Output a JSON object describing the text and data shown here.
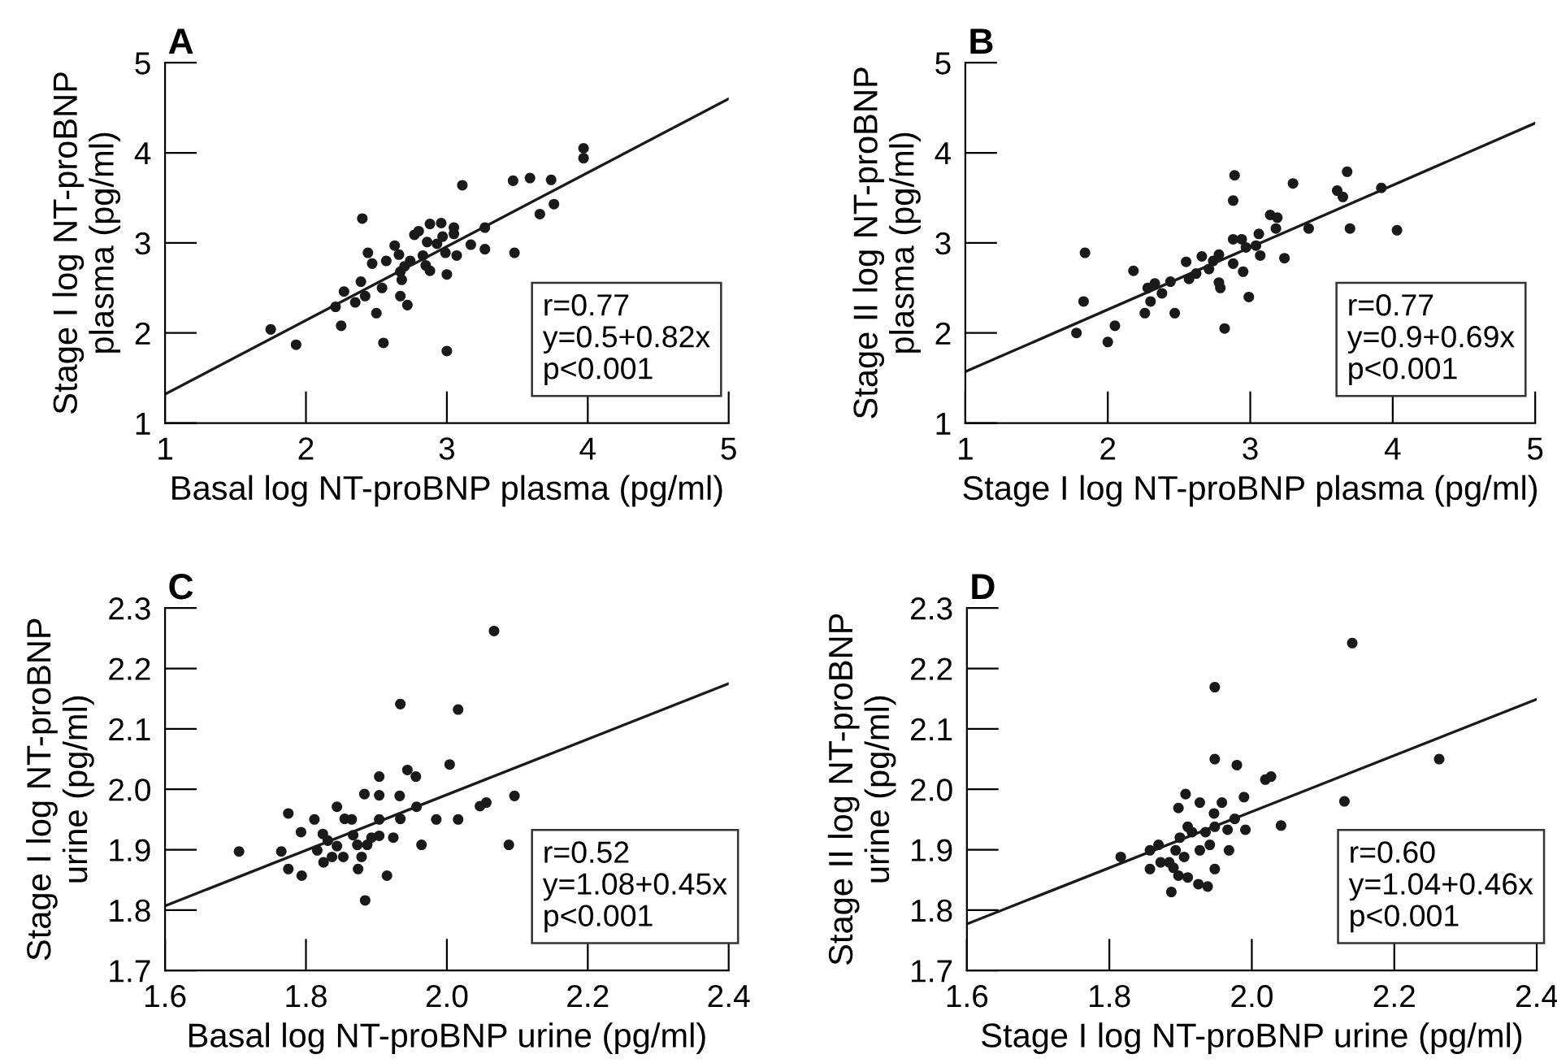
{
  "chart_data": [
    {
      "type": "scatter",
      "title": "A",
      "xlabel": "Basal log NT-proBNP plasma (pg/ml)",
      "ylabel": "Stage I log NT-proBNP\nplasma (pg/ml)",
      "xlim": [
        1,
        5
      ],
      "ylim": [
        1,
        5
      ],
      "xticks": [
        1,
        2,
        3,
        4,
        5
      ],
      "yticks": [
        1,
        2,
        3,
        4,
        5
      ],
      "grid": false,
      "annotations": [
        "r=0.77",
        "y=0.5+0.82x",
        "p<0.001"
      ],
      "series": [
        {
          "type": "scatter",
          "marker": "circle",
          "color": "#1a1a1a",
          "x": [
            1.75,
            1.93,
            2.25,
            2.21,
            2.27,
            2.39,
            2.35,
            2.42,
            2.5,
            2.54,
            2.55,
            2.4,
            2.44,
            2.47,
            2.55,
            2.57,
            2.63,
            2.66,
            2.67,
            2.68,
            2.7,
            2.67,
            2.72,
            2.77,
            2.83,
            2.85,
            2.88,
            2.86,
            2.88,
            2.96,
            2.97,
            2.99,
            3.0,
            3.05,
            3.05,
            3.0,
            3.07,
            3.11,
            3.17,
            3.27,
            3.27,
            3.47,
            3.48,
            3.59,
            3.66,
            3.74,
            3.76,
            3.97,
            3.97,
            2.93,
            2.8,
            2.74
          ],
          "values": [
            2.04,
            1.87,
            2.08,
            2.29,
            2.46,
            2.57,
            2.34,
            2.41,
            2.22,
            2.5,
            1.89,
            3.27,
            2.89,
            2.77,
            null,
            2.8,
            2.97,
            2.87,
            2.68,
            2.59,
            2.74,
            2.41,
            2.31,
            3.09,
            2.86,
            2.75,
            2.69,
            3.01,
            3.21,
            3.22,
            3.07,
            2.89,
            2.65,
            3.1,
            3.17,
            1.8,
            2.86,
            3.64,
            2.98,
            3.17,
            2.93,
            3.69,
            2.89,
            3.72,
            3.32,
            3.7,
            3.43,
            4.05,
            3.94,
            2.99,
            3.13,
            2.8
          ]
        },
        {
          "type": "line",
          "line_style": "solid",
          "color": "#1a1a1a",
          "x": [
            1,
            5
          ],
          "values": [
            1.32,
            4.6
          ]
        }
      ]
    },
    {
      "type": "scatter",
      "title": "B",
      "xlabel": "Stage I log NT-proBNP plasma (pg/ml)",
      "ylabel": "Stage II log NT-proBNP\nplasma (pg/ml)",
      "xlim": [
        1,
        5
      ],
      "ylim": [
        1,
        5
      ],
      "xticks": [
        1,
        2,
        3,
        4,
        5
      ],
      "yticks": [
        1,
        2,
        3,
        4,
        5
      ],
      "grid": false,
      "annotations": [
        "r=0.77",
        "y=0.9+0.69x",
        "p<0.001"
      ],
      "series": [
        {
          "type": "scatter",
          "marker": "circle",
          "color": "#1a1a1a",
          "x": [
            1.78,
            1.83,
            1.84,
            2.0,
            2.05,
            2.18,
            2.26,
            2.3,
            2.28,
            2.33,
            2.38,
            2.44,
            2.47,
            2.55,
            2.57,
            2.62,
            2.66,
            2.71,
            2.74,
            2.78,
            2.79,
            2.78,
            2.82,
            2.88,
            2.88,
            2.89,
            2.88,
            2.94,
            2.97,
            2.95,
            2.99,
            3.04,
            3.07,
            3.06,
            3.14,
            3.18,
            3.19,
            3.24,
            3.3,
            3.41,
            3.61,
            3.65,
            3.68,
            3.7,
            3.92,
            4.03
          ],
          "values": [
            2.0,
            2.35,
            2.89,
            1.9,
            2.08,
            2.69,
            2.22,
            2.35,
            2.5,
            2.55,
            2.44,
            2.57,
            2.22,
            2.79,
            2.6,
            2.66,
            2.85,
            2.71,
            2.8,
            2.56,
            2.5,
            2.87,
            2.05,
            2.77,
            3.47,
            3.75,
            3.04,
            3.04,
            2.95,
            2.68,
            2.4,
            2.97,
            2.86,
            3.1,
            3.31,
            3.16,
            3.28,
            2.83,
            3.66,
            3.16,
            3.58,
            3.51,
            3.79,
            3.16,
            3.61,
            3.14
          ]
        },
        {
          "type": "line",
          "line_style": "solid",
          "color": "#1a1a1a",
          "x": [
            1,
            5
          ],
          "values": [
            1.57,
            4.33
          ]
        }
      ]
    },
    {
      "type": "scatter",
      "title": "C",
      "xlabel": "Basal log NT-proBNP urine (pg/ml)",
      "ylabel": "Stage I log NT-proBNP\nurine (pg/ml)",
      "xlim": [
        1.6,
        2.4
      ],
      "ylim": [
        1.7,
        2.3
      ],
      "xticks": [
        {
          "value": 1.6,
          "label": "1.6"
        },
        {
          "value": 1.8,
          "label": "1.8"
        },
        {
          "value": 2.0,
          "label": "2.0"
        },
        {
          "value": 2.2,
          "label": "2.2"
        },
        {
          "value": 2.4,
          "label": "2.4"
        }
      ],
      "yticks": [
        1.7,
        1.8,
        1.9,
        {
          "value": 2.0,
          "label": "2.0"
        },
        2.1,
        2.2,
        2.3
      ],
      "grid": false,
      "annotations": [
        "r=0.52",
        "y=1.08+0.45x",
        "p<0.001"
      ],
      "series": [
        {
          "type": "scatter",
          "marker": "circle",
          "color": "#1a1a1a",
          "x": [
            1.705,
            1.765,
            1.775,
            1.775,
            1.794,
            1.793,
            1.812,
            1.816,
            1.825,
            1.824,
            1.831,
            1.837,
            1.844,
            1.844,
            1.853,
            1.855,
            1.865,
            1.867,
            1.873,
            1.874,
            1.879,
            1.883,
            1.884,
            1.887,
            1.893,
            1.904,
            1.904,
            1.904,
            1.904,
            1.915,
            1.924,
            1.933,
            1.934,
            1.934,
            1.944,
            1.956,
            1.957,
            1.964,
            1.985,
            2.004,
            2.016,
            2.016,
            2.047,
            2.056,
            2.067,
            2.088,
            2.096
          ],
          "values": [
            1.897,
            1.897,
            1.96,
            1.868,
            1.857,
            1.929,
            1.95,
            1.899,
            1.879,
            1.926,
            1.915,
            1.888,
            1.971,
            1.906,
            1.888,
            1.951,
            1.95,
            1.924,
            1.908,
            1.868,
            1.888,
            1.992,
            1.816,
            1.908,
            1.92,
            1.95,
            1.99,
            2.021,
            1.923,
            1.857,
            1.92,
            1.989,
            2.141,
            1.951,
            2.032,
            2.021,
            1.971,
            1.908,
            1.95,
            2.041,
            2.132,
            1.95,
            1.972,
            1.978,
            2.262,
            1.908,
            1.989
          ]
        },
        {
          "type": "line",
          "line_style": "solid",
          "color": "#1a1a1a",
          "x": [
            1.6,
            2.4
          ],
          "values": [
            1.807,
            2.175
          ]
        }
      ]
    },
    {
      "type": "scatter",
      "title": "D",
      "xlabel": "Stage I log NT-proBNP urine (pg/ml)",
      "ylabel": "Stage II log NT-proBNP\nurine (pg/ml)",
      "xlim": [
        1.6,
        2.4
      ],
      "ylim": [
        1.7,
        2.3
      ],
      "xticks": [
        {
          "value": 1.6,
          "label": "1.6"
        },
        {
          "value": 1.8,
          "label": "1.8"
        },
        {
          "value": 2.0,
          "label": "2.0"
        },
        {
          "value": 2.2,
          "label": "2.2"
        },
        {
          "value": 2.4,
          "label": "2.4"
        }
      ],
      "yticks": [
        1.7,
        1.8,
        1.9,
        {
          "value": 2.0,
          "label": "2.0"
        },
        2.1,
        2.2,
        2.3
      ],
      "grid": false,
      "annotations": [
        "r=0.60",
        "y=1.04+0.46x",
        "p<0.001"
      ],
      "series": [
        {
          "type": "scatter",
          "marker": "circle",
          "color": "#1a1a1a",
          "x": [
            1.816,
            1.857,
            1.857,
            1.869,
            1.872,
            1.884,
            1.887,
            1.89,
            1.893,
            1.897,
            1.899,
            1.897,
            1.905,
            1.907,
            1.91,
            1.91,
            1.916,
            1.925,
            1.927,
            1.927,
            1.935,
            1.938,
            1.941,
            1.947,
            1.948,
            1.948,
            1.948,
            1.948,
            1.958,
            1.966,
            1.968,
            1.976,
            1.979,
            1.989,
            1.991,
            2.019,
            2.027,
            2.041,
            2.13,
            2.141,
            2.263
          ],
          "values": [
            1.888,
            1.868,
            1.899,
            1.908,
            1.879,
            1.879,
            1.83,
            1.87,
            1.899,
            1.969,
            1.92,
            1.857,
            1.888,
            1.992,
            1.854,
            1.938,
            1.929,
            1.843,
            1.899,
            1.978,
            1.929,
            1.839,
            1.908,
            1.96,
            2.169,
            2.05,
            1.868,
            1.938,
            1.978,
            1.933,
            1.899,
            1.951,
            2.04,
            1.987,
            1.933,
            2.016,
            2.021,
            1.94,
            1.98,
            2.242,
            2.05
          ]
        },
        {
          "type": "line",
          "line_style": "solid",
          "color": "#1a1a1a",
          "x": [
            1.6,
            2.4
          ],
          "values": [
            1.777,
            2.149
          ]
        }
      ]
    }
  ]
}
